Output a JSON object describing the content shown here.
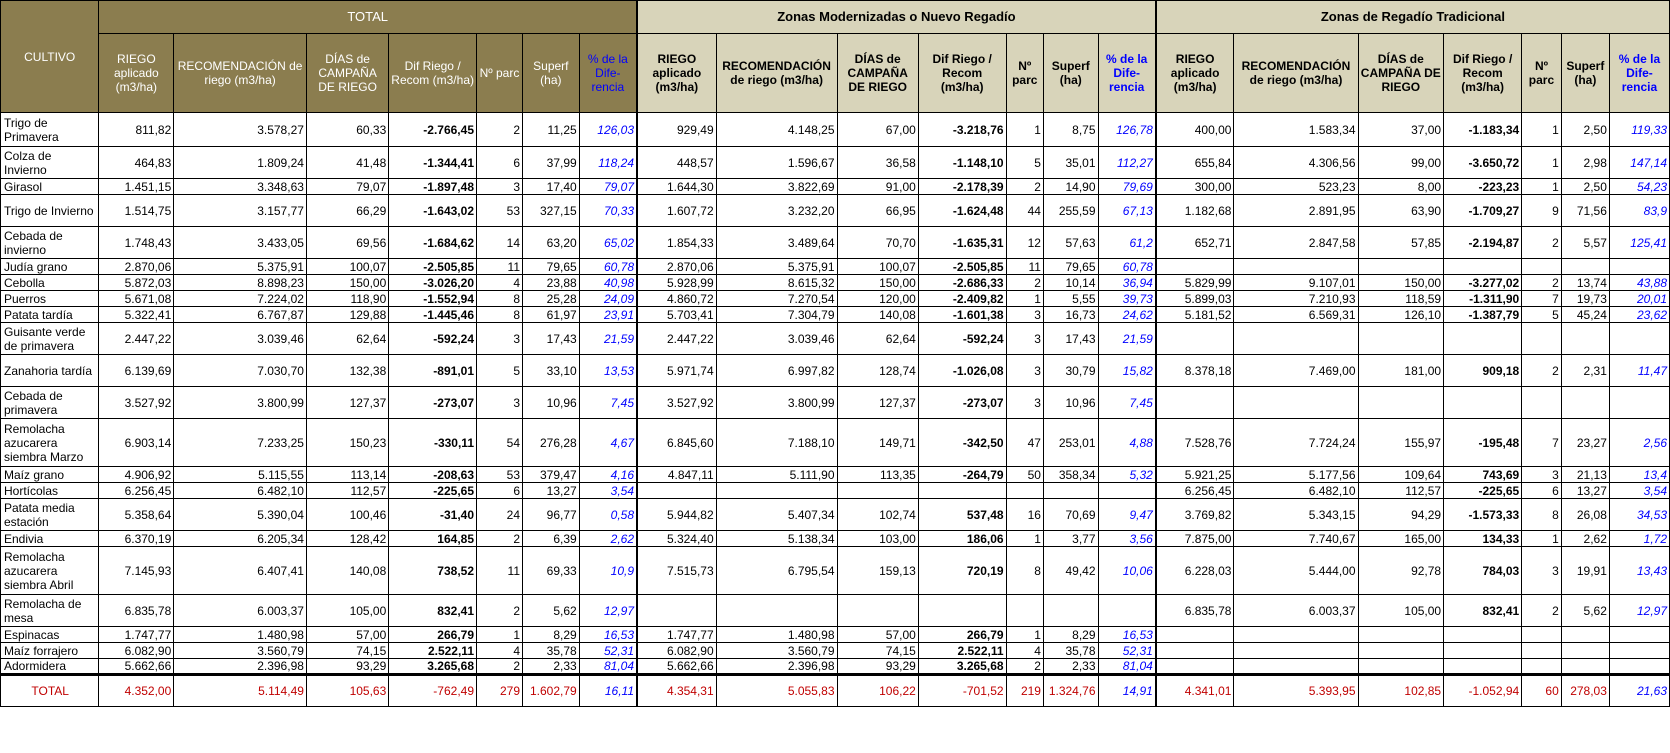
{
  "headers": {
    "cultivo": "CULTIVO",
    "groups": [
      "TOTAL",
      "Zonas Modernizadas o Nuevo Regadío",
      "Zonas de Regadío Tradicional"
    ],
    "cols": [
      [
        "RIEGO aplicado (m3/ha)",
        "RECOMENDACIÓN de riego (m3/ha)",
        "DÍAS de CAMPAÑA DE RIEGO",
        "Dif Riego / Recom (m3/ha)",
        "Nº parc",
        "Superf (ha)",
        "% de la Dife-rencia"
      ],
      [
        "RIEGO aplicado (m3/ha)",
        "RECOMENDACIÓN de riego (m3/ha)",
        "DÍAS de CAMPAÑA DE RIEGO",
        "Dif Riego / Recom (m3/ha)",
        "Nº parc",
        "Superf (ha)",
        "% de la Dife-rencia"
      ],
      [
        "RIEGO aplicado (m3/ha)",
        "RECOMENDACIÓN de riego (m3/ha)",
        "DÍAS de CAMPAÑA DE RIEGO",
        "Dif Riego / Recom (m3/ha)",
        "Nº parc",
        "Superf (ha)",
        "% de la Dife-rencia"
      ]
    ]
  },
  "rows": [
    {
      "name": "Trigo de Primavera",
      "h": 34,
      "v": [
        "811,82",
        "3.578,27",
        "60,33",
        "-2.766,45",
        "2",
        "11,25",
        "126,03",
        "929,49",
        "4.148,25",
        "67,00",
        "-3.218,76",
        "1",
        "8,75",
        "126,78",
        "400,00",
        "1.583,34",
        "37,00",
        "-1.183,34",
        "1",
        "2,50",
        "119,33"
      ]
    },
    {
      "name": "Colza de Invierno",
      "h": 32,
      "v": [
        "464,83",
        "1.809,24",
        "41,48",
        "-1.344,41",
        "6",
        "37,99",
        "118,24",
        "448,57",
        "1.596,67",
        "36,58",
        "-1.148,10",
        "5",
        "35,01",
        "112,27",
        "655,84",
        "4.306,56",
        "99,00",
        "-3.650,72",
        "1",
        "2,98",
        "147,14"
      ]
    },
    {
      "name": "Girasol",
      "h": 16,
      "v": [
        "1.451,15",
        "3.348,63",
        "79,07",
        "-1.897,48",
        "3",
        "17,40",
        "79,07",
        "1.644,30",
        "3.822,69",
        "91,00",
        "-2.178,39",
        "2",
        "14,90",
        "79,69",
        "300,00",
        "523,23",
        "8,00",
        "-223,23",
        "1",
        "2,50",
        "54,23"
      ]
    },
    {
      "name": "Trigo de Invierno",
      "h": 32,
      "v": [
        "1.514,75",
        "3.157,77",
        "66,29",
        "-1.643,02",
        "53",
        "327,15",
        "70,33",
        "1.607,72",
        "3.232,20",
        "66,95",
        "-1.624,48",
        "44",
        "255,59",
        "67,13",
        "1.182,68",
        "2.891,95",
        "63,90",
        "-1.709,27",
        "9",
        "71,56",
        "83,9"
      ]
    },
    {
      "name": "Cebada de invierno",
      "h": 32,
      "v": [
        "1.748,43",
        "3.433,05",
        "69,56",
        "-1.684,62",
        "14",
        "63,20",
        "65,02",
        "1.854,33",
        "3.489,64",
        "70,70",
        "-1.635,31",
        "12",
        "57,63",
        "61,2",
        "652,71",
        "2.847,58",
        "57,85",
        "-2.194,87",
        "2",
        "5,57",
        "125,41"
      ]
    },
    {
      "name": "Judía grano",
      "h": 16,
      "v": [
        "2.870,06",
        "5.375,91",
        "100,07",
        "-2.505,85",
        "11",
        "79,65",
        "60,78",
        "2.870,06",
        "5.375,91",
        "100,07",
        "-2.505,85",
        "11",
        "79,65",
        "60,78",
        "",
        "",
        "",
        "",
        "",
        "",
        ""
      ]
    },
    {
      "name": "Cebolla",
      "h": 16,
      "v": [
        "5.872,03",
        "8.898,23",
        "150,00",
        "-3.026,20",
        "4",
        "23,88",
        "40,98",
        "5.928,99",
        "8.615,32",
        "150,00",
        "-2.686,33",
        "2",
        "10,14",
        "36,94",
        "5.829,99",
        "9.107,01",
        "150,00",
        "-3.277,02",
        "2",
        "13,74",
        "43,88"
      ]
    },
    {
      "name": "Puerros",
      "h": 16,
      "v": [
        "5.671,08",
        "7.224,02",
        "118,90",
        "-1.552,94",
        "8",
        "25,28",
        "24,09",
        "4.860,72",
        "7.270,54",
        "120,00",
        "-2.409,82",
        "1",
        "5,55",
        "39,73",
        "5.899,03",
        "7.210,93",
        "118,59",
        "-1.311,90",
        "7",
        "19,73",
        "20,01"
      ]
    },
    {
      "name": "Patata tardía",
      "h": 16,
      "v": [
        "5.322,41",
        "6.767,87",
        "129,88",
        "-1.445,46",
        "8",
        "61,97",
        "23,91",
        "5.703,41",
        "7.304,79",
        "140,08",
        "-1.601,38",
        "3",
        "16,73",
        "24,62",
        "5.181,52",
        "6.569,31",
        "126,10",
        "-1.387,79",
        "5",
        "45,24",
        "23,62"
      ]
    },
    {
      "name": "Guisante verde de primavera",
      "h": 32,
      "v": [
        "2.447,22",
        "3.039,46",
        "62,64",
        "-592,24",
        "3",
        "17,43",
        "21,59",
        "2.447,22",
        "3.039,46",
        "62,64",
        "-592,24",
        "3",
        "17,43",
        "21,59",
        "",
        "",
        "",
        "",
        "",
        "",
        ""
      ]
    },
    {
      "name": "Zanahoria tardía",
      "h": 32,
      "v": [
        "6.139,69",
        "7.030,70",
        "132,38",
        "-891,01",
        "5",
        "33,10",
        "13,53",
        "5.971,74",
        "6.997,82",
        "128,74",
        "-1.026,08",
        "3",
        "30,79",
        "15,82",
        "8.378,18",
        "7.469,00",
        "181,00",
        "909,18",
        "2",
        "2,31",
        "11,47"
      ]
    },
    {
      "name": "Cebada de primavera",
      "h": 32,
      "v": [
        "3.527,92",
        "3.800,99",
        "127,37",
        "-273,07",
        "3",
        "10,96",
        "7,45",
        "3.527,92",
        "3.800,99",
        "127,37",
        "-273,07",
        "3",
        "10,96",
        "7,45",
        "",
        "",
        "",
        "",
        "",
        "",
        ""
      ]
    },
    {
      "name": "Remolacha azucarera siembra Marzo",
      "h": 48,
      "v": [
        "6.903,14",
        "7.233,25",
        "150,23",
        "-330,11",
        "54",
        "276,28",
        "4,67",
        "6.845,60",
        "7.188,10",
        "149,71",
        "-342,50",
        "47",
        "253,01",
        "4,88",
        "7.528,76",
        "7.724,24",
        "155,97",
        "-195,48",
        "7",
        "23,27",
        "2,56"
      ]
    },
    {
      "name": "Maíz grano",
      "h": 16,
      "v": [
        "4.906,92",
        "5.115,55",
        "113,14",
        "-208,63",
        "53",
        "379,47",
        "4,16",
        "4.847,11",
        "5.111,90",
        "113,35",
        "-264,79",
        "50",
        "358,34",
        "5,32",
        "5.921,25",
        "5.177,56",
        "109,64",
        "743,69",
        "3",
        "21,13",
        "13,4"
      ]
    },
    {
      "name": "Hortícolas",
      "h": 16,
      "v": [
        "6.256,45",
        "6.482,10",
        "112,57",
        "-225,65",
        "6",
        "13,27",
        "3,54",
        "",
        "",
        "",
        "",
        "",
        "",
        "",
        "6.256,45",
        "6.482,10",
        "112,57",
        "-225,65",
        "6",
        "13,27",
        "3,54"
      ]
    },
    {
      "name": "Patata media estación",
      "h": 32,
      "v": [
        "5.358,64",
        "5.390,04",
        "100,46",
        "-31,40",
        "24",
        "96,77",
        "0,58",
        "5.944,82",
        "5.407,34",
        "102,74",
        "537,48",
        "16",
        "70,69",
        "9,47",
        "3.769,82",
        "5.343,15",
        "94,29",
        "-1.573,33",
        "8",
        "26,08",
        "34,53"
      ]
    },
    {
      "name": "Endivia",
      "h": 16,
      "v": [
        "6.370,19",
        "6.205,34",
        "128,42",
        "164,85",
        "2",
        "6,39",
        "2,62",
        "5.324,40",
        "5.138,34",
        "103,00",
        "186,06",
        "1",
        "3,77",
        "3,56",
        "7.875,00",
        "7.740,67",
        "165,00",
        "134,33",
        "1",
        "2,62",
        "1,72"
      ]
    },
    {
      "name": "Remolacha azucarera siembra Abril",
      "h": 48,
      "v": [
        "7.145,93",
        "6.407,41",
        "140,08",
        "738,52",
        "11",
        "69,33",
        "10,9",
        "7.515,73",
        "6.795,54",
        "159,13",
        "720,19",
        "8",
        "49,42",
        "10,06",
        "6.228,03",
        "5.444,00",
        "92,78",
        "784,03",
        "3",
        "19,91",
        "13,43"
      ]
    },
    {
      "name": "Remolacha de mesa",
      "h": 32,
      "v": [
        "6.835,78",
        "6.003,37",
        "105,00",
        "832,41",
        "2",
        "5,62",
        "12,97",
        "",
        "",
        "",
        "",
        "",
        "",
        "",
        "6.835,78",
        "6.003,37",
        "105,00",
        "832,41",
        "2",
        "5,62",
        "12,97"
      ]
    },
    {
      "name": "Espinacas",
      "h": 16,
      "v": [
        "1.747,77",
        "1.480,98",
        "57,00",
        "266,79",
        "1",
        "8,29",
        "16,53",
        "1.747,77",
        "1.480,98",
        "57,00",
        "266,79",
        "1",
        "8,29",
        "16,53",
        "",
        "",
        "",
        "",
        "",
        "",
        ""
      ]
    },
    {
      "name": "Maíz forrajero",
      "h": 16,
      "v": [
        "6.082,90",
        "3.560,79",
        "74,15",
        "2.522,11",
        "4",
        "35,78",
        "52,31",
        "6.082,90",
        "3.560,79",
        "74,15",
        "2.522,11",
        "4",
        "35,78",
        "52,31",
        "",
        "",
        "",
        "",
        "",
        "",
        ""
      ]
    },
    {
      "name": "Adormidera",
      "h": 16,
      "v": [
        "5.662,66",
        "2.396,98",
        "93,29",
        "3.265,68",
        "2",
        "2,33",
        "81,04",
        "5.662,66",
        "2.396,98",
        "93,29",
        "3.265,68",
        "2",
        "2,33",
        "81,04",
        "",
        "",
        "",
        "",
        "",
        "",
        ""
      ]
    }
  ],
  "total": {
    "name": "TOTAL",
    "v": [
      "4.352,00",
      "5.114,49",
      "105,63",
      "-762,49",
      "279",
      "1.602,79",
      "16,11",
      "4.354,31",
      "5.055,83",
      "106,22",
      "-701,52",
      "219",
      "1.324,76",
      "14,91",
      "4.341,01",
      "5.393,95",
      "102,85",
      "-1.052,94",
      "60",
      "278,03",
      "21,63"
    ]
  }
}
